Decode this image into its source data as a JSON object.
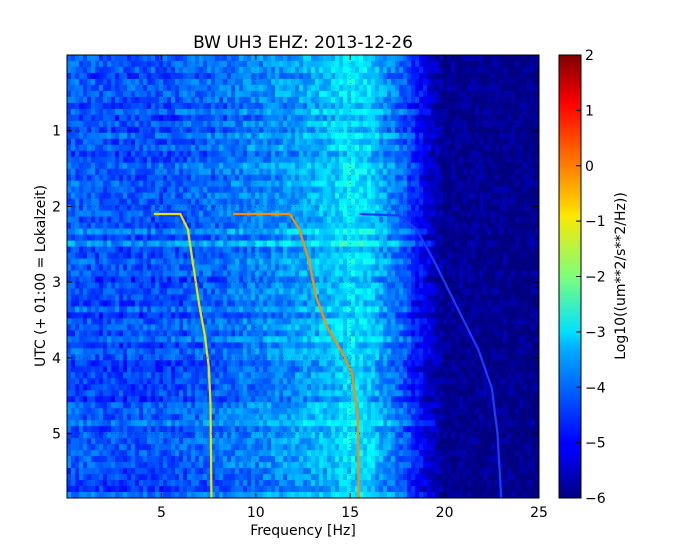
{
  "chart_data": {
    "type": "heatmap",
    "title": "BW UH3 EHZ: 2013-12-26",
    "xlabel": "Frequency [Hz]",
    "ylabel": "UTC (+ 01:00 = Lokalzeit)",
    "xlim": [
      0,
      25
    ],
    "ylim": [
      5.85,
      0
    ],
    "x_ticks": [
      5,
      10,
      15,
      20,
      25
    ],
    "y_ticks": [
      1,
      2,
      3,
      4,
      5
    ],
    "grid": true,
    "colormap": "jet",
    "colorbar": {
      "label": "Log10((um**2/s**2/Hz))",
      "range": [
        -6,
        2
      ],
      "ticks": [
        2,
        1,
        0,
        -1,
        -2,
        -3,
        -4,
        -5,
        -6
      ]
    },
    "spectral_lines": [
      {
        "name": "",
        "points": [
          [
            4.6,
            2.1
          ],
          [
            6.0,
            2.1
          ],
          [
            6.4,
            2.3
          ],
          [
            6.7,
            2.8
          ],
          [
            7.0,
            3.3
          ],
          [
            7.3,
            3.7
          ],
          [
            7.5,
            4.1
          ],
          [
            7.6,
            4.6
          ],
          [
            7.65,
            5.85
          ]
        ]
      },
      {
        "name": "",
        "points": [
          [
            8.8,
            2.1
          ],
          [
            11.8,
            2.1
          ],
          [
            12.3,
            2.3
          ],
          [
            12.8,
            2.7
          ],
          [
            13.2,
            3.2
          ],
          [
            13.8,
            3.6
          ],
          [
            14.5,
            3.9
          ],
          [
            15.1,
            4.2
          ],
          [
            15.4,
            4.8
          ],
          [
            15.45,
            5.85
          ]
        ]
      },
      {
        "name": "",
        "points": [
          [
            15.5,
            2.1
          ],
          [
            17.6,
            2.12
          ],
          [
            18.5,
            2.3
          ],
          [
            19.4,
            2.7
          ],
          [
            20.2,
            3.1
          ],
          [
            21.0,
            3.5
          ],
          [
            21.8,
            3.9
          ],
          [
            22.5,
            4.4
          ],
          [
            22.8,
            5.0
          ],
          [
            23.0,
            5.85
          ]
        ]
      }
    ],
    "mean_spectrum_log10": [
      [
        0,
        -4.3
      ],
      [
        2,
        -4.4
      ],
      [
        5,
        -4.4
      ],
      [
        8,
        -4.2
      ],
      [
        10,
        -4.0
      ],
      [
        12,
        -3.8
      ],
      [
        14,
        -3.5
      ],
      [
        15,
        -3.2
      ],
      [
        16,
        -3.4
      ],
      [
        17,
        -3.9
      ],
      [
        18,
        -4.4
      ],
      [
        19,
        -5.2
      ],
      [
        20,
        -5.9
      ],
      [
        25,
        -6.0
      ]
    ]
  }
}
